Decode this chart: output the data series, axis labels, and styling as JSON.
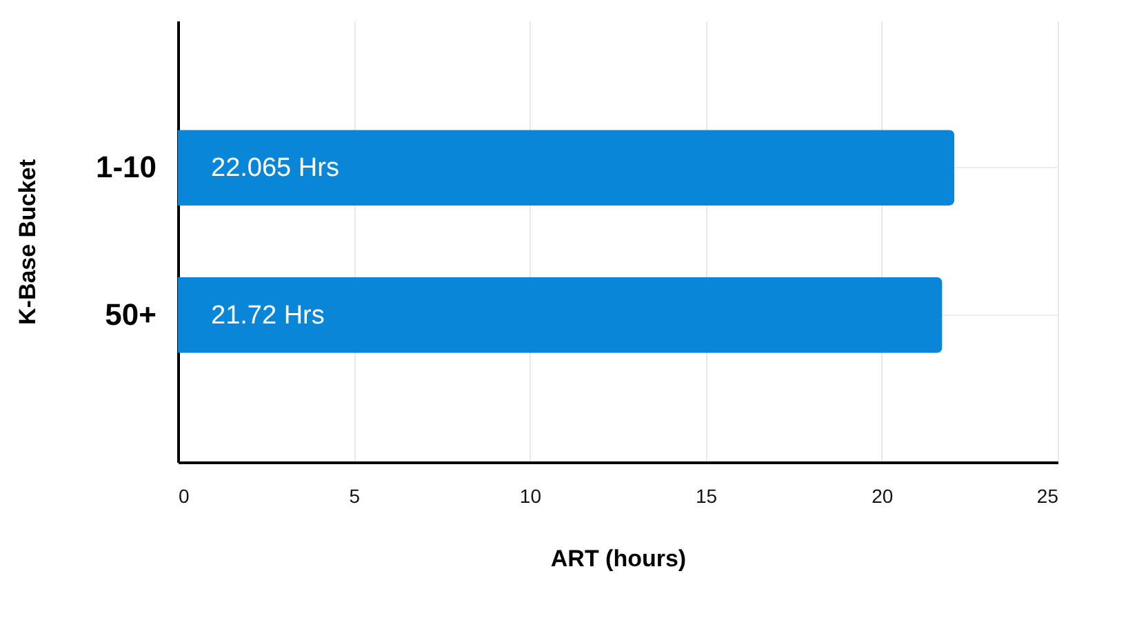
{
  "chart_data": {
    "type": "bar",
    "orientation": "horizontal",
    "xlabel": "ART (hours)",
    "ylabel": "K-Base Bucket",
    "categories": [
      "1-10",
      "50+"
    ],
    "values": [
      22.065,
      21.72
    ],
    "value_labels": [
      "22.065 Hrs",
      "21.72 Hrs"
    ],
    "color": "#0a86d8",
    "xlim": [
      0,
      25
    ],
    "xticks": [
      0,
      5,
      10,
      15,
      20,
      25
    ],
    "grid": true
  }
}
